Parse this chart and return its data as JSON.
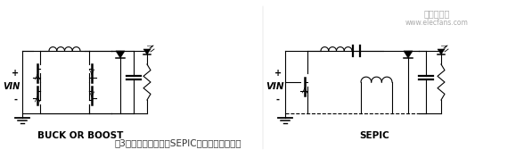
{
  "background_color": "#ffffff",
  "fig_width": 5.97,
  "fig_height": 1.77,
  "dpi": 100,
  "bottom_text": "图3降压或升压型以及SEPIC拓扑提供了更高的",
  "watermark_text": "电子发烧友",
  "watermark_url": "www.elecfans.com",
  "label_left": "BUCK OR BOOST",
  "label_right": "SEPIC",
  "vin_label": "VIN",
  "plus_label": "+",
  "minus_label": "-",
  "line_color": "#000000",
  "text_color": "#000000",
  "gray_color": "#888888",
  "light_gray": "#cccccc"
}
